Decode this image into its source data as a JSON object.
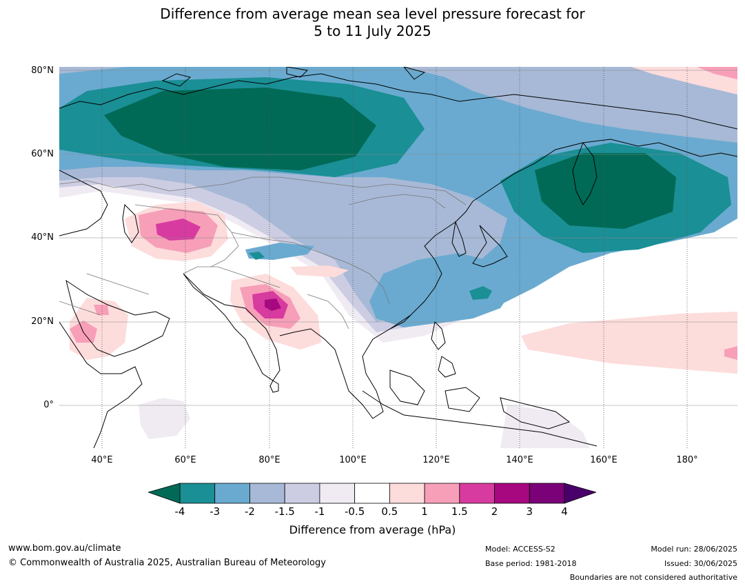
{
  "title_line1": "Difference from average mean sea level pressure forecast for",
  "title_line2": "5 to 11 July 2025",
  "lat_labels": [
    "80°N",
    "60°N",
    "40°N",
    "20°N",
    "0°"
  ],
  "lon_labels": [
    "40°E",
    "60°E",
    "80°E",
    "100°E",
    "120°E",
    "140°E",
    "160°E",
    "180°"
  ],
  "colorbar": {
    "ticks": [
      "-4",
      "-3",
      "-2",
      "-1.5",
      "-1",
      "-0.5",
      "0.5",
      "1",
      "1.5",
      "2",
      "3",
      "4"
    ],
    "colors": [
      "#1a8f95",
      "#6aaad0",
      "#a7b9d6",
      "#cccde3",
      "#f0ebf3",
      "#ffffff",
      "#fddcdc",
      "#f79fb8",
      "#d83b9f",
      "#a7087f",
      "#7a0177"
    ],
    "under_color": "#006a56",
    "over_color": "#49006a",
    "label": "Difference from average (hPa)"
  },
  "footer": {
    "url": "www.bom.gov.au/climate",
    "copyright": "© Commonwealth of Australia 2025, Australian Bureau of Meteorology",
    "model": "Model: ACCESS-S2",
    "base_period": "Base period: 1981-2018",
    "model_run": "Model run: 28/06/2025",
    "issued": "Issued: 30/06/2025",
    "disclaimer": "Boundaries are not considered authoritative"
  }
}
